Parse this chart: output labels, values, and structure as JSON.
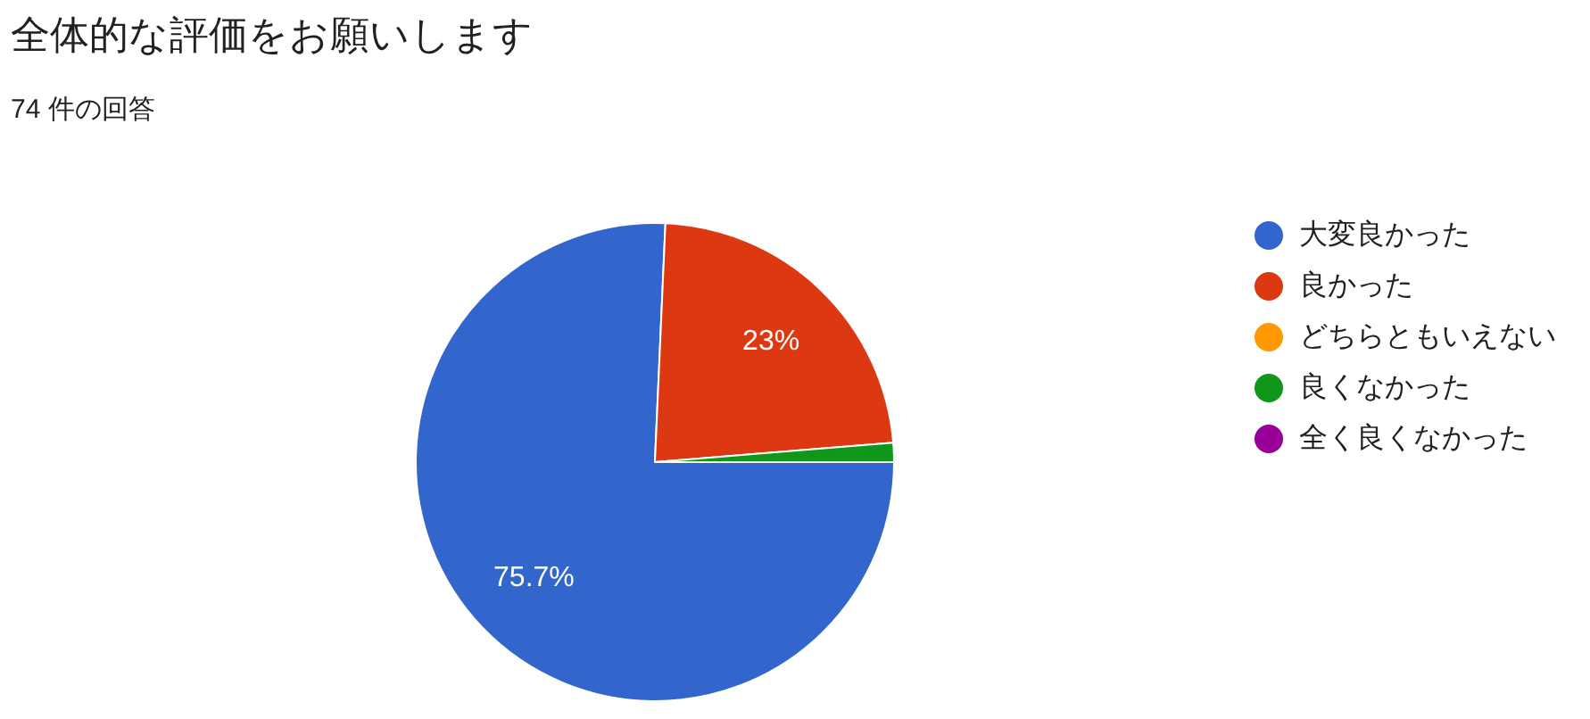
{
  "chart_data": {
    "type": "pie",
    "title": "全体的な評価をお願いします",
    "subtitle": "74 件の回答",
    "categories": [
      "大変良かった",
      "良かった",
      "どちらともいえない",
      "良くなかった",
      "全く良くなかった"
    ],
    "values": [
      75.7,
      23,
      0,
      1.3,
      0
    ],
    "colors": [
      "#3366cc",
      "#dc3912",
      "#ff9900",
      "#109618",
      "#990099"
    ],
    "value_labels": [
      "75.7%",
      "23%",
      null,
      null,
      null
    ],
    "legend": "right"
  }
}
